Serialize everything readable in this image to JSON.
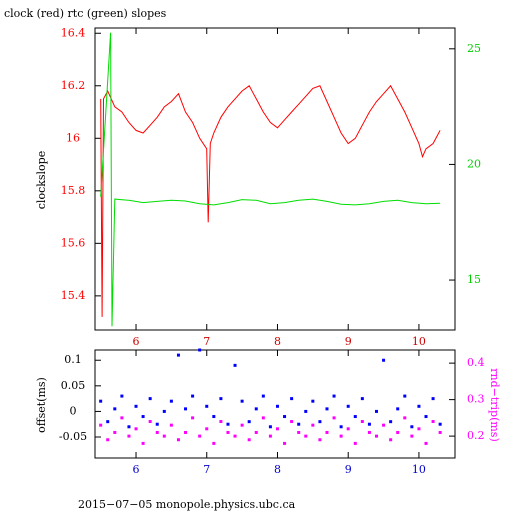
{
  "chart_data": [
    {
      "type": "line",
      "title": "clock (red) rtc (green) slopes",
      "ylabel": "clockslope",
      "xlim": [
        5.42,
        10.51
      ],
      "xticks": [
        6,
        7,
        8,
        9,
        10
      ],
      "xtick_color": "#cc0000",
      "ylim": [
        15.27,
        16.42
      ],
      "yticks": [
        15.4,
        15.6,
        15.8,
        16,
        16.2,
        16.4
      ],
      "ytick_color": "#ff0000",
      "y2lim": [
        12.84,
        25.9
      ],
      "y2ticks": [
        15,
        20,
        25
      ],
      "y2tick_color": "#00cc00",
      "series": [
        {
          "name": "clock",
          "color": "#ff0000",
          "axis": "y",
          "x": [
            5.5,
            5.52,
            5.54,
            5.6,
            5.7,
            5.8,
            5.9,
            6.0,
            6.1,
            6.2,
            6.3,
            6.4,
            6.5,
            6.6,
            6.7,
            6.8,
            6.9,
            7.0,
            7.02,
            7.05,
            7.1,
            7.2,
            7.3,
            7.4,
            7.5,
            7.6,
            7.7,
            7.8,
            7.9,
            8.0,
            8.1,
            8.2,
            8.3,
            8.4,
            8.5,
            8.6,
            8.7,
            8.8,
            8.9,
            9.0,
            9.1,
            9.2,
            9.3,
            9.4,
            9.5,
            9.6,
            9.7,
            9.8,
            9.9,
            10.0,
            10.05,
            10.1,
            10.2,
            10.3
          ],
          "values": [
            16.15,
            15.32,
            16.15,
            16.18,
            16.12,
            16.1,
            16.06,
            16.03,
            16.02,
            16.05,
            16.08,
            16.12,
            16.14,
            16.17,
            16.1,
            16.06,
            16.0,
            15.96,
            15.68,
            15.98,
            16.02,
            16.08,
            16.12,
            16.15,
            16.18,
            16.2,
            16.15,
            16.1,
            16.06,
            16.04,
            16.07,
            16.1,
            16.13,
            16.16,
            16.19,
            16.2,
            16.14,
            16.08,
            16.02,
            15.98,
            16.0,
            16.05,
            16.1,
            16.14,
            16.17,
            16.2,
            16.15,
            16.1,
            16.04,
            15.98,
            15.93,
            15.96,
            15.98,
            16.03
          ]
        },
        {
          "name": "rtc",
          "color": "#00dd00",
          "axis": "y2",
          "x": [
            5.5,
            5.64,
            5.66,
            5.7,
            5.9,
            6.1,
            6.3,
            6.5,
            6.7,
            6.9,
            7.1,
            7.3,
            7.5,
            7.7,
            7.9,
            8.1,
            8.3,
            8.5,
            8.7,
            8.9,
            9.1,
            9.3,
            9.5,
            9.7,
            9.9,
            10.1,
            10.3
          ],
          "values": [
            18.6,
            25.7,
            13.0,
            18.5,
            18.45,
            18.35,
            18.4,
            18.45,
            18.42,
            18.3,
            18.25,
            18.35,
            18.48,
            18.45,
            18.3,
            18.35,
            18.45,
            18.5,
            18.4,
            18.28,
            18.25,
            18.3,
            18.4,
            18.45,
            18.35,
            18.3,
            18.32
          ]
        }
      ]
    },
    {
      "type": "scatter",
      "ylabel": "offset(ms)",
      "y2label": "rnd−trip(ms)",
      "xlim": [
        5.42,
        10.51
      ],
      "xticks": [
        6,
        7,
        8,
        9,
        10
      ],
      "xtick_color": "#0000cc",
      "ylim": [
        -0.091,
        0.12
      ],
      "yticks": [
        -0.05,
        0,
        0.05,
        0.1
      ],
      "ytick_color": "#000000",
      "y2lim": [
        0.14,
        0.436
      ],
      "y2ticks": [
        0.2,
        0.3,
        0.4
      ],
      "y2tick_color": "#ff00ff",
      "x": [
        5.5,
        5.6,
        5.7,
        5.8,
        5.9,
        6.0,
        6.1,
        6.2,
        6.3,
        6.4,
        6.5,
        6.6,
        6.7,
        6.8,
        6.9,
        7.0,
        7.1,
        7.2,
        7.3,
        7.4,
        7.5,
        7.6,
        7.7,
        7.8,
        7.9,
        8.0,
        8.1,
        8.2,
        8.3,
        8.4,
        8.5,
        8.6,
        8.7,
        8.8,
        8.9,
        9.0,
        9.1,
        9.2,
        9.3,
        9.4,
        9.5,
        9.6,
        9.7,
        9.8,
        9.9,
        10.0,
        10.1,
        10.2,
        10.3
      ],
      "series": [
        {
          "name": "offset",
          "color": "#0000ff",
          "axis": "y",
          "values": [
            0.02,
            -0.02,
            0.005,
            0.03,
            -0.03,
            0.01,
            -0.01,
            0.025,
            -0.025,
            0,
            0.02,
            0.11,
            0.005,
            0.03,
            0.12,
            0.01,
            -0.01,
            0.025,
            -0.025,
            0.09,
            0.02,
            -0.02,
            0.005,
            0.03,
            -0.03,
            0.01,
            -0.01,
            0.025,
            -0.025,
            0,
            0.02,
            -0.02,
            0.005,
            0.03,
            -0.03,
            0.01,
            -0.01,
            0.025,
            -0.025,
            0,
            0.1,
            -0.02,
            0.005,
            0.03,
            -0.03,
            0.01,
            -0.01,
            0.025,
            -0.025
          ]
        },
        {
          "name": "rnd-trip",
          "color": "#ff00ff",
          "axis": "y2",
          "values": [
            0.23,
            0.19,
            0.21,
            0.25,
            0.2,
            0.22,
            0.18,
            0.24,
            0.21,
            0.2,
            0.23,
            0.19,
            0.21,
            0.25,
            0.2,
            0.22,
            0.18,
            0.24,
            0.21,
            0.2,
            0.23,
            0.19,
            0.21,
            0.25,
            0.2,
            0.22,
            0.18,
            0.24,
            0.21,
            0.2,
            0.23,
            0.19,
            0.21,
            0.25,
            0.2,
            0.22,
            0.18,
            0.24,
            0.21,
            0.2,
            0.23,
            0.19,
            0.21,
            0.25,
            0.2,
            0.22,
            0.18,
            0.24,
            0.21
          ]
        }
      ]
    }
  ],
  "footer": "2015−07−05  monopole.physics.ubc.ca"
}
